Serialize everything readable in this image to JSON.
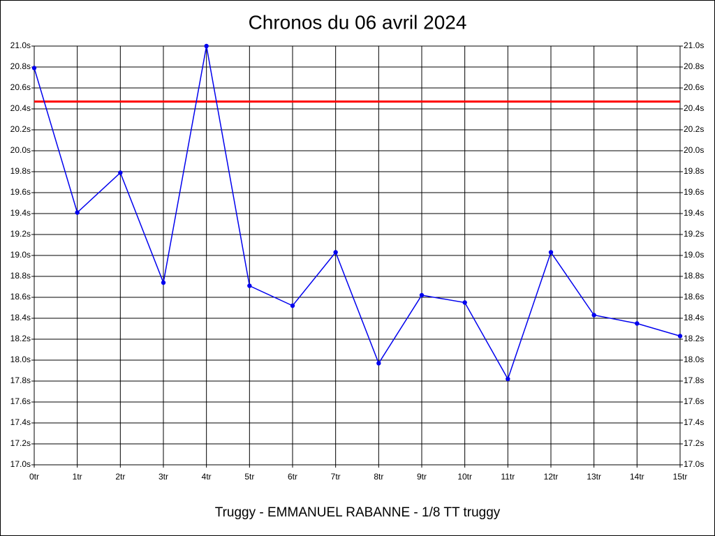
{
  "chart_data": {
    "type": "line",
    "title": "Chronos du 06 avril 2024",
    "xlabel": "Truggy - EMMANUEL RABANNE - 1/8 TT truggy",
    "categories": [
      "0tr",
      "1tr",
      "2tr",
      "3tr",
      "4tr",
      "5tr",
      "6tr",
      "7tr",
      "8tr",
      "9tr",
      "10tr",
      "11tr",
      "12tr",
      "13tr",
      "14tr",
      "15tr"
    ],
    "series": [
      {
        "color": "#0000ee",
        "values": [
          20.79,
          19.41,
          19.79,
          18.74,
          21.0,
          18.71,
          18.52,
          19.03,
          17.97,
          18.62,
          18.55,
          17.82,
          19.03,
          18.43,
          18.35,
          18.23
        ]
      }
    ],
    "reference_line": {
      "value": 20.47,
      "color": "#ff0000"
    },
    "ylim": [
      17.0,
      21.0
    ],
    "yticks": [
      {
        "value": 17.0,
        "label": "17.0s"
      },
      {
        "value": 17.2,
        "label": "17.2s"
      },
      {
        "value": 17.4,
        "label": "17.4s"
      },
      {
        "value": 17.6,
        "label": "17.6s"
      },
      {
        "value": 17.8,
        "label": "17.8s"
      },
      {
        "value": 18.0,
        "label": "18.0s"
      },
      {
        "value": 18.2,
        "label": "18.2s"
      },
      {
        "value": 18.4,
        "label": "18.4s"
      },
      {
        "value": 18.6,
        "label": "18.6s"
      },
      {
        "value": 18.8,
        "label": "18.8s"
      },
      {
        "value": 19.0,
        "label": "19.0s"
      },
      {
        "value": 19.2,
        "label": "19.2s"
      },
      {
        "value": 19.4,
        "label": "19.4s"
      },
      {
        "value": 19.6,
        "label": "19.6s"
      },
      {
        "value": 19.8,
        "label": "19.8s"
      },
      {
        "value": 20.0,
        "label": "20.0s"
      },
      {
        "value": 20.2,
        "label": "20.2s"
      },
      {
        "value": 20.4,
        "label": "20.4s"
      },
      {
        "value": 20.6,
        "label": "20.6s"
      },
      {
        "value": 20.8,
        "label": "20.8s"
      },
      {
        "value": 21.0,
        "label": "21.0s"
      }
    ],
    "grid": true
  }
}
